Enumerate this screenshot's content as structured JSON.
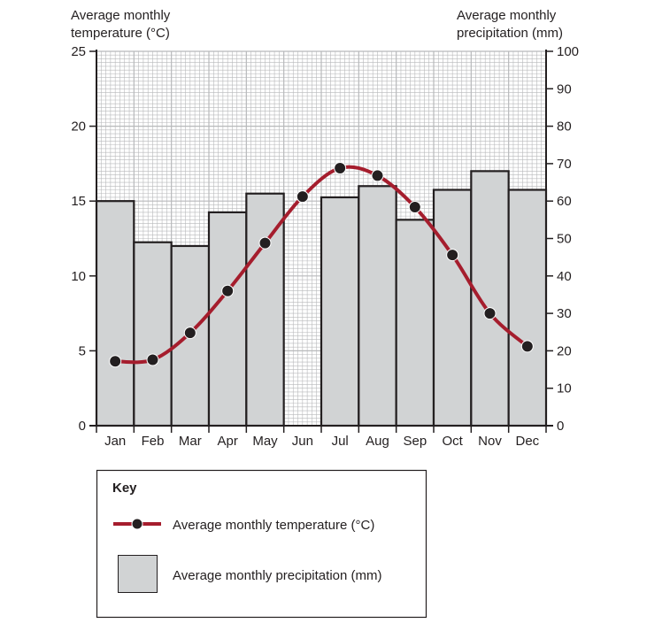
{
  "chart_data": {
    "type": "bar+line",
    "categories": [
      "Jan",
      "Feb",
      "Mar",
      "Apr",
      "May",
      "Jun",
      "Jul",
      "Aug",
      "Sep",
      "Oct",
      "Nov",
      "Dec"
    ],
    "series": [
      {
        "name": "Average monthly precipitation (mm)",
        "type": "bar",
        "axis": "right",
        "values": [
          60,
          49,
          48,
          57,
          62,
          0,
          61,
          64,
          55,
          63,
          68,
          63
        ]
      },
      {
        "name": "Average monthly temperature (°C)",
        "type": "line",
        "axis": "left",
        "values": [
          4.3,
          4.4,
          6.2,
          9.0,
          12.2,
          15.3,
          17.2,
          16.7,
          14.6,
          11.4,
          7.5,
          5.3
        ]
      }
    ],
    "ylabel_left": [
      "Average monthly",
      "temperature (°C)"
    ],
    "ylabel_right": [
      "Average monthly",
      "precipitation  (mm)"
    ],
    "ylim_left": [
      0,
      25
    ],
    "ylim_right": [
      0,
      100
    ],
    "yticks_left": [
      "0",
      "5",
      "10",
      "15",
      "20",
      "25"
    ],
    "yticks_right": [
      "0",
      "10",
      "20",
      "30",
      "40",
      "50",
      "60",
      "70",
      "80",
      "90",
      "100"
    ],
    "grid": true,
    "colors": {
      "bar_fill": "#d1d3d4",
      "line": "#a51d2d",
      "marker": "#231f20",
      "grid": "#b8b9bb"
    },
    "key": {
      "title": "Key",
      "line_label": "Average monthly temperature (°C)",
      "bar_label": "Average monthly precipitation (mm)"
    }
  }
}
